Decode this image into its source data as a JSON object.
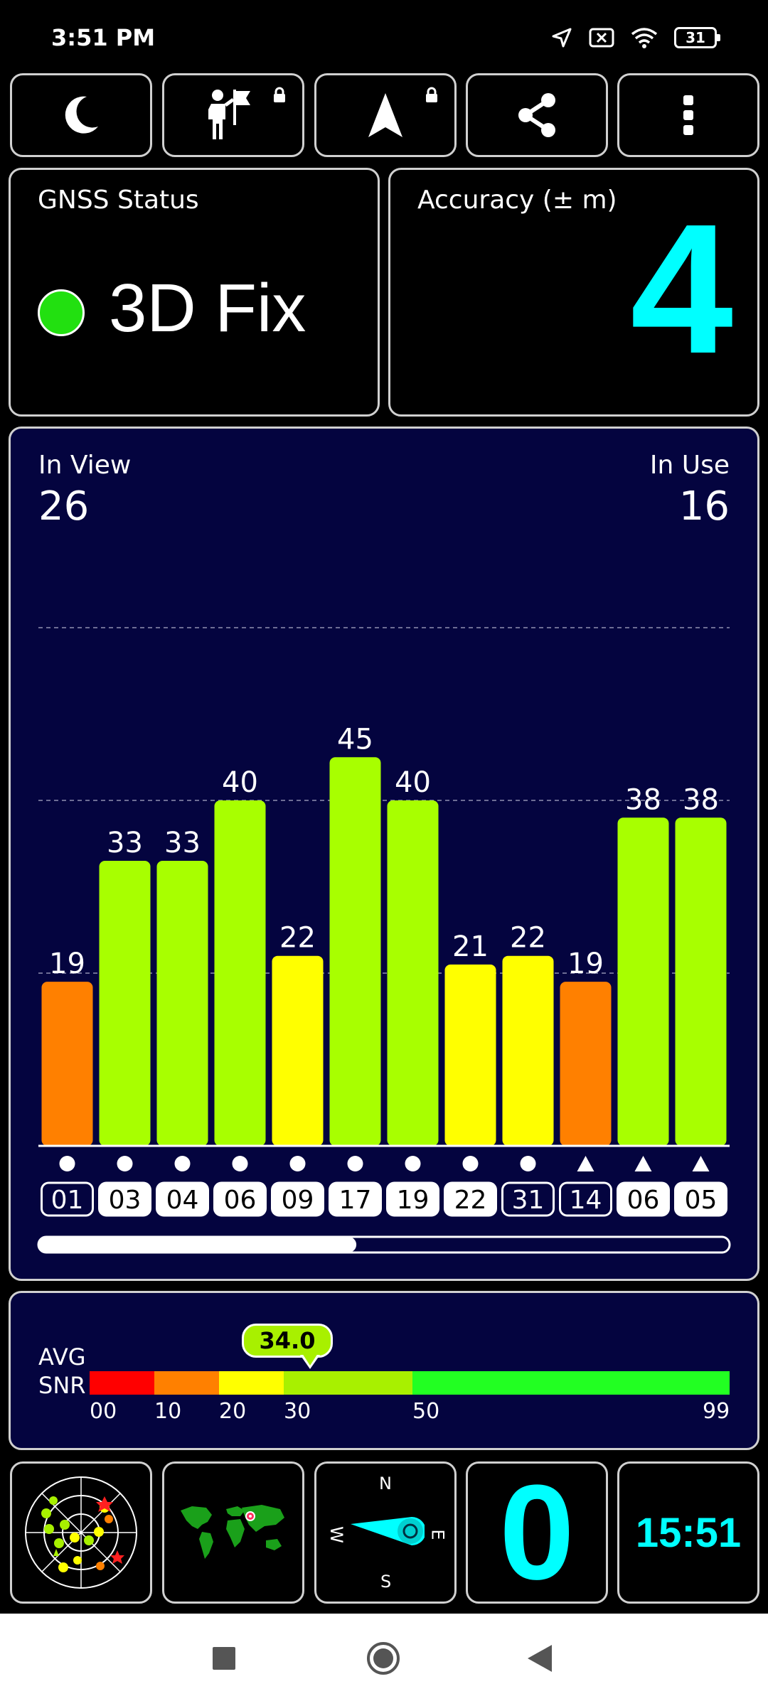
{
  "status_bar": {
    "time": "3:51 PM",
    "battery": "31",
    "icons": [
      "location-arrow-icon",
      "notification-x-icon",
      "wifi-icon",
      "battery-icon"
    ]
  },
  "toolbar": {
    "buttons": [
      "night-mode-icon",
      "person-flag-icon",
      "navigation-arrow-icon",
      "share-icon",
      "more-vertical-icon"
    ]
  },
  "gnss_status": {
    "label": "GNSS Status",
    "value": "3D Fix",
    "indicator_color": "#22e010"
  },
  "accuracy": {
    "label": "Accuracy (± m)",
    "value": "4",
    "color": "#00ffff"
  },
  "satellites": {
    "in_view_label": "In View",
    "in_view": "26",
    "in_use_label": "In Use",
    "in_use": "16",
    "scroll_position": 0.46
  },
  "chart_data": {
    "type": "bar",
    "categories": [
      "01",
      "03",
      "04",
      "06",
      "09",
      "17",
      "19",
      "22",
      "31",
      "14",
      "06",
      "05"
    ],
    "values": [
      19,
      33,
      33,
      40,
      22,
      45,
      40,
      21,
      22,
      19,
      38,
      38
    ],
    "markers": [
      "circle",
      "circle",
      "circle",
      "circle",
      "circle",
      "circle",
      "circle",
      "circle",
      "circle",
      "triangle",
      "triangle",
      "triangle"
    ],
    "in_use": [
      false,
      true,
      true,
      true,
      true,
      true,
      true,
      true,
      false,
      false,
      true,
      true
    ],
    "ylim": [
      0,
      60
    ],
    "gridlines": [
      20,
      40,
      60
    ],
    "color_scale": [
      {
        "min": 0,
        "max": 10,
        "color": "#ff0000"
      },
      {
        "min": 10,
        "max": 20,
        "color": "#ff8000"
      },
      {
        "min": 20,
        "max": 30,
        "color": "#ffff00"
      },
      {
        "min": 30,
        "max": 50,
        "color": "#a8ff00"
      },
      {
        "min": 50,
        "max": 99,
        "color": "#22ff22"
      }
    ]
  },
  "avg_snr": {
    "label_line1": "AVG",
    "label_line2": "SNR",
    "value": "34.0",
    "ticks": [
      "00",
      "10",
      "20",
      "30",
      "50",
      "99"
    ],
    "segment_colors": [
      "#ff0000",
      "#ff8000",
      "#ffff00",
      "#a8f000",
      "#22ff22"
    ]
  },
  "bottom_tiles": {
    "compass": {
      "n": "N",
      "s": "S",
      "e": "E",
      "w": "W"
    },
    "satellites_in_fix": "0",
    "clock": "15:51",
    "icons": [
      "sky-view-icon",
      "world-map-icon",
      "compass-icon"
    ]
  },
  "nav_bar": {
    "icons": [
      "recent-apps-icon",
      "home-icon",
      "back-icon"
    ]
  }
}
